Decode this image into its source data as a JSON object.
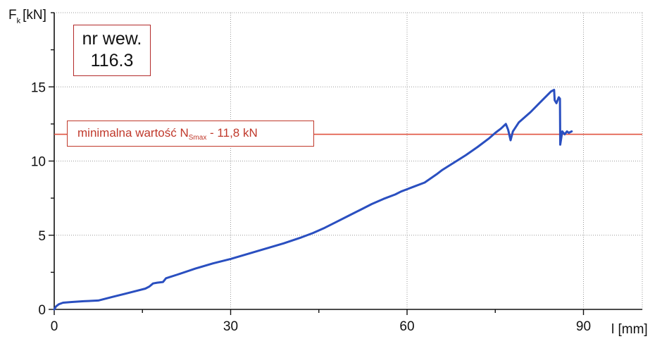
{
  "chart_data": {
    "type": "line",
    "xlabel": "l [mm]",
    "ylabel_main": "F",
    "ylabel_sub": "k",
    "ylabel_unit": "[kN]",
    "xlim": [
      0,
      100
    ],
    "ylim": [
      0,
      20
    ],
    "x_ticks": [
      0,
      30,
      60,
      90
    ],
    "y_ticks": [
      0,
      5,
      10,
      15
    ],
    "grid": true,
    "sample_label_line1": "nr wew.",
    "sample_label_line2": "116.3",
    "reference_line": {
      "y": 11.8,
      "label_prefix": "minimalna wartość  N",
      "label_sub": "Smax",
      "label_suffix": " - 11,8 kN",
      "color": "#e0533f"
    },
    "series": [
      {
        "color": "#2a4fc0",
        "x": [
          0,
          0.3,
          0.8,
          1.5,
          3,
          5,
          7.5,
          10,
          12,
          14,
          15.5,
          16.2,
          16.8,
          17.5,
          18.5,
          19,
          21,
          24,
          27,
          30,
          33,
          36,
          39,
          42,
          44,
          46,
          48,
          50,
          52,
          54,
          56,
          58,
          59,
          60,
          61,
          63,
          65,
          66,
          68,
          70,
          72,
          74,
          75,
          76,
          76.8,
          77.2,
          77.6,
          78,
          79,
          81,
          83,
          84.5,
          85,
          85.1,
          85.4,
          85.8,
          86,
          86.05,
          86.2,
          86.4,
          86.8,
          87.2,
          87.5,
          88
        ],
        "y": [
          0,
          0.2,
          0.35,
          0.45,
          0.5,
          0.55,
          0.6,
          0.85,
          1.05,
          1.25,
          1.4,
          1.55,
          1.75,
          1.8,
          1.85,
          2.1,
          2.35,
          2.75,
          3.1,
          3.4,
          3.75,
          4.1,
          4.45,
          4.85,
          5.15,
          5.5,
          5.9,
          6.3,
          6.7,
          7.1,
          7.45,
          7.75,
          7.95,
          8.1,
          8.25,
          8.55,
          9.1,
          9.4,
          9.9,
          10.4,
          10.95,
          11.55,
          11.9,
          12.2,
          12.5,
          12.1,
          11.4,
          12.0,
          12.6,
          13.3,
          14.1,
          14.7,
          14.8,
          14.1,
          13.9,
          14.3,
          14.2,
          11.1,
          11.5,
          12.0,
          11.8,
          12.0,
          11.9,
          12.0
        ]
      }
    ]
  }
}
